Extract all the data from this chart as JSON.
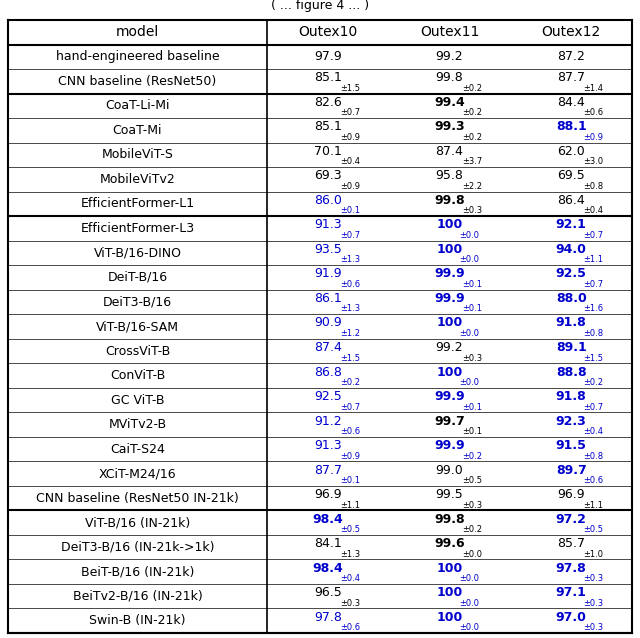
{
  "title": "( ... figure 4 ... )",
  "col_headers": [
    "model",
    "Outex10",
    "Outex11",
    "Outex12"
  ],
  "rows": [
    {
      "group": 0,
      "model": "hand-engineered baseline",
      "outex10": "97.9",
      "outex10_std": "",
      "outex10_bold": false,
      "outex10_blue": false,
      "outex11": "99.2",
      "outex11_std": "",
      "outex11_bold": false,
      "outex11_blue": false,
      "outex12": "87.2",
      "outex12_std": "",
      "outex12_bold": false,
      "outex12_blue": false
    },
    {
      "group": 0,
      "model": "CNN baseline (ResNet50)",
      "outex10": "85.1",
      "outex10_std": "±1.5",
      "outex10_bold": false,
      "outex10_blue": false,
      "outex11": "99.8",
      "outex11_std": "±0.2",
      "outex11_bold": false,
      "outex11_blue": false,
      "outex12": "87.7",
      "outex12_std": "±1.4",
      "outex12_bold": false,
      "outex12_blue": false
    },
    {
      "group": 1,
      "model": "CoaT-Li-Mi",
      "outex10": "82.6",
      "outex10_std": "±0.7",
      "outex10_bold": false,
      "outex10_blue": false,
      "outex11": "99.4",
      "outex11_std": "±0.2",
      "outex11_bold": true,
      "outex11_blue": false,
      "outex12": "84.4",
      "outex12_std": "±0.6",
      "outex12_bold": false,
      "outex12_blue": false
    },
    {
      "group": 1,
      "model": "CoaT-Mi",
      "outex10": "85.1",
      "outex10_std": "±0.9",
      "outex10_bold": false,
      "outex10_blue": false,
      "outex11": "99.3",
      "outex11_std": "±0.2",
      "outex11_bold": true,
      "outex11_blue": false,
      "outex12": "88.1",
      "outex12_std": "±0.9",
      "outex12_bold": true,
      "outex12_blue": true
    },
    {
      "group": 1,
      "model": "MobileViT-S",
      "outex10": "70.1",
      "outex10_std": "±0.4",
      "outex10_bold": false,
      "outex10_blue": false,
      "outex11": "87.4",
      "outex11_std": "±3.7",
      "outex11_bold": false,
      "outex11_blue": false,
      "outex12": "62.0",
      "outex12_std": "±3.0",
      "outex12_bold": false,
      "outex12_blue": false
    },
    {
      "group": 1,
      "model": "MobileViTv2",
      "outex10": "69.3",
      "outex10_std": "±0.9",
      "outex10_bold": false,
      "outex10_blue": false,
      "outex11": "95.8",
      "outex11_std": "±2.2",
      "outex11_bold": false,
      "outex11_blue": false,
      "outex12": "69.5",
      "outex12_std": "±0.8",
      "outex12_bold": false,
      "outex12_blue": false
    },
    {
      "group": 1,
      "model": "EfficientFormer-L1",
      "outex10": "86.0",
      "outex10_std": "±0.1",
      "outex10_bold": false,
      "outex10_blue": true,
      "outex11": "99.8",
      "outex11_std": "±0.3",
      "outex11_bold": true,
      "outex11_blue": false,
      "outex12": "86.4",
      "outex12_std": "±0.4",
      "outex12_bold": false,
      "outex12_blue": false
    },
    {
      "group": 2,
      "model": "EfficientFormer-L3",
      "outex10": "91.3",
      "outex10_std": "±0.7",
      "outex10_bold": false,
      "outex10_blue": true,
      "outex11": "100",
      "outex11_std": "±0.0",
      "outex11_bold": true,
      "outex11_blue": true,
      "outex12": "92.1",
      "outex12_std": "±0.7",
      "outex12_bold": true,
      "outex12_blue": true
    },
    {
      "group": 2,
      "model": "ViT-B/16-DINO",
      "outex10": "93.5",
      "outex10_std": "±1.3",
      "outex10_bold": false,
      "outex10_blue": true,
      "outex11": "100",
      "outex11_std": "±0.0",
      "outex11_bold": true,
      "outex11_blue": true,
      "outex12": "94.0",
      "outex12_std": "±1.1",
      "outex12_bold": true,
      "outex12_blue": true
    },
    {
      "group": 2,
      "model": "DeiT-B/16",
      "outex10": "91.9",
      "outex10_std": "±0.6",
      "outex10_bold": false,
      "outex10_blue": true,
      "outex11": "99.9",
      "outex11_std": "±0.1",
      "outex11_bold": true,
      "outex11_blue": true,
      "outex12": "92.5",
      "outex12_std": "±0.7",
      "outex12_bold": true,
      "outex12_blue": true
    },
    {
      "group": 2,
      "model": "DeiT3-B/16",
      "outex10": "86.1",
      "outex10_std": "±1.3",
      "outex10_bold": false,
      "outex10_blue": true,
      "outex11": "99.9",
      "outex11_std": "±0.1",
      "outex11_bold": true,
      "outex11_blue": true,
      "outex12": "88.0",
      "outex12_std": "±1.6",
      "outex12_bold": true,
      "outex12_blue": true
    },
    {
      "group": 2,
      "model": "ViT-B/16-SAM",
      "outex10": "90.9",
      "outex10_std": "±1.2",
      "outex10_bold": false,
      "outex10_blue": true,
      "outex11": "100",
      "outex11_std": "±0.0",
      "outex11_bold": true,
      "outex11_blue": true,
      "outex12": "91.8",
      "outex12_std": "±0.8",
      "outex12_bold": true,
      "outex12_blue": true
    },
    {
      "group": 2,
      "model": "CrossViT-B",
      "outex10": "87.4",
      "outex10_std": "±1.5",
      "outex10_bold": false,
      "outex10_blue": true,
      "outex11": "99.2",
      "outex11_std": "±0.3",
      "outex11_bold": false,
      "outex11_blue": false,
      "outex12": "89.1",
      "outex12_std": "±1.5",
      "outex12_bold": true,
      "outex12_blue": true
    },
    {
      "group": 2,
      "model": "ConViT-B",
      "outex10": "86.8",
      "outex10_std": "±0.2",
      "outex10_bold": false,
      "outex10_blue": true,
      "outex11": "100",
      "outex11_std": "±0.0",
      "outex11_bold": true,
      "outex11_blue": true,
      "outex12": "88.8",
      "outex12_std": "±0.2",
      "outex12_bold": true,
      "outex12_blue": true
    },
    {
      "group": 2,
      "model": "GC ViT-B",
      "outex10": "92.5",
      "outex10_std": "±0.7",
      "outex10_bold": false,
      "outex10_blue": true,
      "outex11": "99.9",
      "outex11_std": "±0.1",
      "outex11_bold": true,
      "outex11_blue": true,
      "outex12": "91.8",
      "outex12_std": "±0.7",
      "outex12_bold": true,
      "outex12_blue": true
    },
    {
      "group": 2,
      "model": "MViTv2-B",
      "outex10": "91.2",
      "outex10_std": "±0.6",
      "outex10_bold": false,
      "outex10_blue": true,
      "outex11": "99.7",
      "outex11_std": "±0.1",
      "outex11_bold": true,
      "outex11_blue": false,
      "outex12": "92.3",
      "outex12_std": "±0.4",
      "outex12_bold": true,
      "outex12_blue": true
    },
    {
      "group": 2,
      "model": "CaiT-S24",
      "outex10": "91.3",
      "outex10_std": "±0.9",
      "outex10_bold": false,
      "outex10_blue": true,
      "outex11": "99.9",
      "outex11_std": "±0.2",
      "outex11_bold": true,
      "outex11_blue": true,
      "outex12": "91.5",
      "outex12_std": "±0.8",
      "outex12_bold": true,
      "outex12_blue": true
    },
    {
      "group": 2,
      "model": "XCiT-M24/16",
      "outex10": "87.7",
      "outex10_std": "±0.1",
      "outex10_bold": false,
      "outex10_blue": true,
      "outex11": "99.0",
      "outex11_std": "±0.5",
      "outex11_bold": false,
      "outex11_blue": false,
      "outex12": "89.7",
      "outex12_std": "±0.6",
      "outex12_bold": true,
      "outex12_blue": true
    },
    {
      "group": 3,
      "model": "CNN baseline (ResNet50 IN-21k)",
      "outex10": "96.9",
      "outex10_std": "±1.1",
      "outex10_bold": false,
      "outex10_blue": false,
      "outex11": "99.5",
      "outex11_std": "±0.3",
      "outex11_bold": false,
      "outex11_blue": false,
      "outex12": "96.9",
      "outex12_std": "±1.1",
      "outex12_bold": false,
      "outex12_blue": false
    },
    {
      "group": 3,
      "model": "ViT-B/16 (IN-21k)",
      "outex10": "98.4",
      "outex10_std": "±0.5",
      "outex10_bold": true,
      "outex10_blue": true,
      "outex11": "99.8",
      "outex11_std": "±0.2",
      "outex11_bold": true,
      "outex11_blue": false,
      "outex12": "97.2",
      "outex12_std": "±0.5",
      "outex12_bold": true,
      "outex12_blue": true
    },
    {
      "group": 3,
      "model": "DeiT3-B/16 (IN-21k->1k)",
      "outex10": "84.1",
      "outex10_std": "±1.3",
      "outex10_bold": false,
      "outex10_blue": false,
      "outex11": "99.6",
      "outex11_std": "±0.0",
      "outex11_bold": true,
      "outex11_blue": false,
      "outex12": "85.7",
      "outex12_std": "±1.0",
      "outex12_bold": false,
      "outex12_blue": false
    },
    {
      "group": 3,
      "model": "BeiT-B/16 (IN-21k)",
      "outex10": "98.4",
      "outex10_std": "±0.4",
      "outex10_bold": true,
      "outex10_blue": true,
      "outex11": "100",
      "outex11_std": "±0.0",
      "outex11_bold": true,
      "outex11_blue": true,
      "outex12": "97.8",
      "outex12_std": "±0.3",
      "outex12_bold": true,
      "outex12_blue": true
    },
    {
      "group": 3,
      "model": "BeiTv2-B/16 (IN-21k)",
      "outex10": "96.5",
      "outex10_std": "±0.3",
      "outex10_bold": false,
      "outex10_blue": false,
      "outex11": "100",
      "outex11_std": "±0.0",
      "outex11_bold": true,
      "outex11_blue": true,
      "outex12": "97.1",
      "outex12_std": "±0.3",
      "outex12_bold": true,
      "outex12_blue": true
    },
    {
      "group": 3,
      "model": "Swin-B (IN-21k)",
      "outex10": "97.8",
      "outex10_std": "±0.6",
      "outex10_bold": false,
      "outex10_blue": true,
      "outex11": "100",
      "outex11_std": "±0.0",
      "outex11_bold": true,
      "outex11_blue": true,
      "outex12": "97.0",
      "outex12_std": "±0.3",
      "outex12_bold": true,
      "outex12_blue": true
    }
  ],
  "group_separators_after": [
    1,
    6,
    18
  ],
  "blue_color": "#0000cc",
  "black_color": "#000000"
}
